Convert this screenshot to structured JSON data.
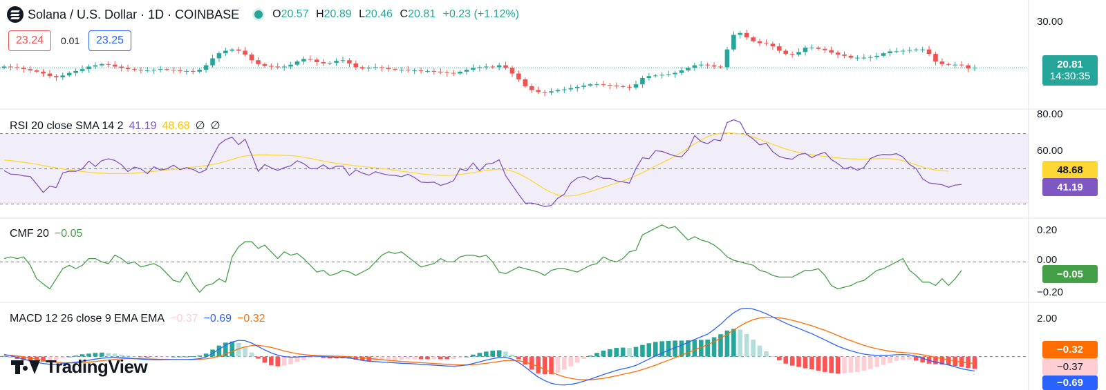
{
  "header": {
    "symbol_title": "Solana / U.S. Dollar · 1D · COINBASE",
    "o_label": "O",
    "o_value": "20.57",
    "h_label": "H",
    "h_value": "20.89",
    "l_label": "L",
    "l_value": "20.46",
    "c_label": "C",
    "c_value": "20.81",
    "change": "+0.23 (+1.12%)",
    "sell_price": "23.24",
    "spread": "0.01",
    "buy_price": "23.25"
  },
  "price_axis": {
    "ticks": [
      "30.00"
    ],
    "last_price": "20.81",
    "countdown": "14:30:35"
  },
  "rsi": {
    "label": "RSI 20 close SMA 14 2",
    "rsi_value": "41.19",
    "sma_value": "48.68",
    "extra1": "∅",
    "extra2": "∅",
    "ticks": [
      "80.00",
      "60.00"
    ],
    "upper_band": 70,
    "lower_band": 30,
    "mid": 50
  },
  "cmf": {
    "label": "CMF 20",
    "value": "−0.05",
    "ticks": [
      "0.20",
      "0.00",
      "−0.20"
    ]
  },
  "macd": {
    "label": "MACD 12 26 close 9 EMA EMA",
    "hist_value": "−0.37",
    "macd_value": "−0.69",
    "signal_value": "−0.32",
    "ticks": [
      "2.00"
    ]
  },
  "branding": {
    "logo_text": "TradingView"
  },
  "colors": {
    "up": "#26a69a",
    "down": "#ef5350",
    "rsi": "#7e57c2",
    "rsi_sma": "#fdd835",
    "cmf": "#43a047",
    "macd": "#2962ff",
    "signal": "#ff6d00",
    "hist_up_strong": "#26a69a",
    "hist_up_weak": "#b2dfdb",
    "hist_down_strong": "#ff5252",
    "hist_down_weak": "#ffcdd2"
  },
  "chart_data": [
    {
      "type": "candlestick",
      "title": "Solana / U.S. Dollar · 1D · COINBASE",
      "ylim": [
        14.3,
        31.5
      ],
      "close": [
        21.0,
        20.9,
        20.8,
        20.6,
        20.4,
        20.2,
        19.9,
        19.5,
        19.3,
        19.6,
        20.0,
        20.3,
        20.6,
        21.0,
        21.2,
        21.4,
        21.3,
        21.0,
        20.8,
        20.6,
        20.5,
        20.4,
        20.4,
        20.5,
        20.6,
        20.5,
        20.4,
        20.3,
        20.3,
        20.2,
        20.5,
        21.2,
        22.3,
        23.1,
        23.5,
        23.7,
        23.5,
        22.9,
        22.0,
        21.4,
        21.1,
        21.0,
        20.9,
        21.0,
        21.3,
        21.8,
        22.2,
        22.1,
        21.7,
        21.5,
        21.6,
        21.9,
        22.0,
        21.5,
        20.9,
        20.7,
        20.8,
        20.9,
        20.8,
        20.6,
        20.5,
        20.5,
        20.4,
        20.4,
        20.3,
        20.3,
        20.2,
        20.1,
        20.0,
        19.9,
        20.2,
        20.5,
        20.8,
        20.9,
        21.0,
        20.9,
        21.2,
        20.8,
        19.9,
        19.0,
        17.9,
        17.3,
        17.0,
        16.9,
        17.1,
        17.3,
        17.4,
        17.6,
        17.8,
        18.0,
        18.2,
        18.2,
        18.1,
        18.0,
        17.9,
        17.8,
        17.7,
        18.2,
        19.2,
        19.5,
        19.6,
        19.7,
        19.8,
        20.0,
        20.4,
        20.8,
        21.2,
        21.3,
        21.2,
        21.0,
        20.9,
        23.7,
        26.0,
        26.3,
        25.6,
        25.0,
        24.7,
        24.6,
        24.2,
        23.5,
        23.0,
        22.9,
        23.3,
        24.0,
        24.0,
        23.8,
        23.6,
        23.2,
        22.9,
        22.7,
        22.4,
        22.4,
        22.4,
        22.5,
        22.7,
        23.1,
        23.4,
        23.4,
        23.5,
        23.6,
        23.7,
        23.7,
        23.0,
        21.8,
        21.4,
        21.3,
        21.3,
        21.2,
        20.7,
        20.81
      ],
      "last_price": 20.81
    },
    {
      "type": "line",
      "name": "RSI 20",
      "ylim": [
        22,
        84
      ],
      "bands": [
        70,
        50,
        30
      ],
      "series": [
        {
          "name": "RSI",
          "values": [
            49.0,
            47.0,
            46.8,
            46.0,
            45.7,
            41.3,
            36.6,
            40.2,
            39.4,
            47.7,
            48.7,
            48.6,
            50.0,
            54.4,
            51.4,
            54.7,
            55.7,
            54.8,
            52.4,
            48.5,
            51.0,
            50.0,
            47.3,
            51.2,
            49.4,
            50.0,
            52.1,
            49.6,
            50.7,
            49.7,
            47.8,
            49.5,
            57.0,
            63.9,
            66.7,
            68.0,
            63.8,
            66.8,
            58.0,
            48.6,
            52.4,
            50.6,
            49.1,
            50.7,
            51.7,
            54.6,
            53.0,
            50.1,
            50.1,
            52.3,
            49.9,
            51.5,
            51.6,
            46.3,
            49.4,
            47.6,
            46.4,
            48.4,
            47.3,
            46.5,
            46.3,
            45.6,
            46.9,
            45.1,
            42.5,
            42.2,
            42.5,
            40.6,
            41.7,
            43.3,
            50.0,
            48.9,
            53.4,
            48.9,
            52.7,
            53.2,
            55.2,
            46.1,
            40.7,
            35.5,
            30.5,
            30.6,
            29.7,
            28.6,
            29.2,
            33.3,
            35.6,
            42.0,
            44.8,
            45.7,
            43.9,
            46.0,
            44.6,
            44.6,
            43.2,
            42.6,
            41.9,
            50.2,
            56.3,
            55.8,
            60.3,
            59.9,
            58.6,
            57.3,
            56.8,
            60.9,
            68.9,
            65.5,
            64.3,
            66.7,
            65.9,
            76.3,
            77.9,
            76.5,
            69.6,
            67.0,
            63.6,
            64.6,
            59.7,
            57.1,
            56.0,
            55.5,
            58.1,
            58.8,
            56.4,
            58.2,
            59.4,
            55.3,
            53.0,
            50.0,
            51.1,
            49.2,
            50.8,
            55.9,
            57.5,
            58.2,
            58.0,
            58.6,
            56.8,
            52.5,
            50.2,
            44.4,
            42.0,
            41.5,
            41.0,
            39.5,
            40.8,
            41.19
          ]
        },
        {
          "name": "SMA",
          "values": [
            55.0,
            54.7,
            54.3,
            53.8,
            53.2,
            52.6,
            51.9,
            51.2,
            50.6,
            50.0,
            49.4,
            48.9,
            48.5,
            48.1,
            47.8,
            47.6,
            47.4,
            47.3,
            47.3,
            47.4,
            47.6,
            47.9,
            48.2,
            48.6,
            49.0,
            49.4,
            49.8,
            50.2,
            50.6,
            51.0,
            51.4,
            51.9,
            52.5,
            53.3,
            54.3,
            55.4,
            56.5,
            57.3,
            57.8,
            58.0,
            58.0,
            57.9,
            57.8,
            57.7,
            57.5,
            57.2,
            56.7,
            56.0,
            55.2,
            54.4,
            53.7,
            53.1,
            52.6,
            52.2,
            51.8,
            51.4,
            51.0,
            50.6,
            50.2,
            49.7,
            49.2,
            48.7,
            48.2,
            47.7,
            47.2,
            46.8,
            46.5,
            46.3,
            46.3,
            46.5,
            46.8,
            47.3,
            47.9,
            48.5,
            49.1,
            49.5,
            49.7,
            49.5,
            48.7,
            47.3,
            45.4,
            43.2,
            40.8,
            38.5,
            36.6,
            35.2,
            34.6,
            34.6,
            35.1,
            36.0,
            37.1,
            38.3,
            39.5,
            40.7,
            41.9,
            43.2,
            44.6,
            46.1,
            47.8,
            49.7,
            51.6,
            53.4,
            55.3,
            57.3,
            59.4,
            61.8,
            64.2,
            66.4,
            68.3,
            69.6,
            70.2,
            70.4,
            70.3,
            69.9,
            69.2,
            68.1,
            66.7,
            65.3,
            63.9,
            62.6,
            61.3,
            60.2,
            59.3,
            58.6,
            58.0,
            57.5,
            57.0,
            56.6,
            56.2,
            55.9,
            55.7,
            55.6,
            55.6,
            55.7,
            55.8,
            55.9,
            55.8,
            55.4,
            54.7,
            53.6,
            52.3,
            51.1,
            50.1,
            49.3,
            48.9,
            48.68
          ]
        }
      ]
    },
    {
      "type": "line",
      "name": "CMF 20",
      "ylim": [
        -0.24,
        0.26
      ],
      "series": [
        {
          "name": "CMF",
          "values": [
            0.02,
            0.03,
            0.02,
            0.03,
            -0.02,
            -0.1,
            -0.13,
            -0.16,
            -0.1,
            -0.04,
            -0.02,
            -0.04,
            -0.02,
            0.02,
            0.02,
            0.0,
            -0.01,
            0.04,
            0.02,
            -0.01,
            0.0,
            -0.03,
            -0.02,
            -0.01,
            -0.03,
            -0.07,
            -0.11,
            -0.12,
            -0.06,
            -0.13,
            -0.18,
            -0.14,
            -0.13,
            -0.1,
            -0.12,
            0.03,
            0.09,
            0.12,
            0.12,
            0.08,
            0.1,
            0.06,
            0.02,
            0.06,
            0.04,
            0.05,
            0.02,
            -0.02,
            -0.06,
            -0.05,
            -0.08,
            -0.07,
            -0.05,
            -0.06,
            -0.08,
            -0.06,
            -0.04,
            0.0,
            0.04,
            0.06,
            0.05,
            0.06,
            0.03,
            0.0,
            -0.03,
            -0.02,
            -0.01,
            0.02,
            0.0,
            0.0,
            0.03,
            0.04,
            0.04,
            0.03,
            0.04,
            0.0,
            -0.06,
            -0.07,
            -0.05,
            -0.03,
            -0.04,
            -0.05,
            -0.06,
            -0.08,
            -0.05,
            -0.04,
            -0.04,
            -0.05,
            -0.06,
            -0.04,
            -0.02,
            -0.01,
            0.03,
            0.01,
            0.0,
            0.02,
            0.06,
            0.07,
            0.16,
            0.18,
            0.2,
            0.22,
            0.2,
            0.21,
            0.17,
            0.13,
            0.15,
            0.13,
            0.12,
            0.1,
            0.07,
            0.03,
            0.01,
            0.0,
            -0.01,
            -0.02,
            -0.05,
            -0.06,
            -0.08,
            -0.09,
            -0.09,
            -0.09,
            -0.07,
            -0.05,
            -0.05,
            -0.04,
            -0.08,
            -0.14,
            -0.16,
            -0.15,
            -0.14,
            -0.12,
            -0.11,
            -0.08,
            -0.05,
            -0.04,
            -0.02,
            0.0,
            0.02,
            -0.05,
            -0.08,
            -0.12,
            -0.12,
            -0.14,
            -0.1,
            -0.14,
            -0.1,
            -0.05
          ]
        }
      ]
    },
    {
      "type": "line+histogram",
      "name": "MACD 12 26 close 9 EMA EMA",
      "ylim": [
        -1.6,
        2.6
      ],
      "series": [
        {
          "name": "MACD",
          "values": [
            0.1,
            0.05,
            -0.04,
            -0.12,
            -0.2,
            -0.27,
            -0.33,
            -0.37,
            -0.37,
            -0.34,
            -0.3,
            -0.27,
            -0.22,
            -0.17,
            -0.12,
            -0.08,
            -0.05,
            -0.04,
            -0.05,
            -0.07,
            -0.1,
            -0.12,
            -0.14,
            -0.15,
            -0.15,
            -0.14,
            -0.14,
            -0.14,
            -0.14,
            -0.13,
            -0.1,
            -0.02,
            0.15,
            0.35,
            0.55,
            0.7,
            0.78,
            0.76,
            0.65,
            0.48,
            0.32,
            0.18,
            0.07,
            0.0,
            -0.03,
            -0.02,
            0.0,
            0.02,
            0.02,
            0.0,
            -0.02,
            -0.03,
            -0.04,
            -0.07,
            -0.12,
            -0.18,
            -0.22,
            -0.24,
            -0.26,
            -0.28,
            -0.3,
            -0.32,
            -0.33,
            -0.35,
            -0.37,
            -0.39,
            -0.41,
            -0.43,
            -0.45,
            -0.46,
            -0.44,
            -0.4,
            -0.33,
            -0.25,
            -0.17,
            -0.1,
            -0.04,
            -0.04,
            -0.12,
            -0.28,
            -0.5,
            -0.75,
            -0.98,
            -1.15,
            -1.28,
            -1.35,
            -1.36,
            -1.33,
            -1.27,
            -1.18,
            -1.08,
            -0.97,
            -0.86,
            -0.76,
            -0.66,
            -0.58,
            -0.52,
            -0.42,
            -0.27,
            -0.12,
            0.03,
            0.17,
            0.3,
            0.43,
            0.55,
            0.68,
            0.82,
            0.95,
            1.08,
            1.3,
            1.55,
            1.85,
            2.1,
            2.28,
            2.32,
            2.28,
            2.18,
            2.05,
            1.9,
            1.75,
            1.6,
            1.47,
            1.35,
            1.22,
            1.1,
            0.95,
            0.8,
            0.65,
            0.5,
            0.38,
            0.28,
            0.19,
            0.12,
            0.08,
            0.06,
            0.06,
            0.07,
            0.09,
            0.1,
            0.08,
            0.02,
            -0.08,
            -0.18,
            -0.26,
            -0.33,
            -0.4,
            -0.49,
            -0.58,
            -0.64,
            -0.69
          ]
        },
        {
          "name": "Signal",
          "values": [
            0.08,
            0.06,
            0.03,
            -0.01,
            -0.06,
            -0.12,
            -0.18,
            -0.23,
            -0.27,
            -0.29,
            -0.3,
            -0.3,
            -0.29,
            -0.26,
            -0.23,
            -0.2,
            -0.16,
            -0.13,
            -0.11,
            -0.1,
            -0.1,
            -0.1,
            -0.11,
            -0.12,
            -0.13,
            -0.13,
            -0.14,
            -0.14,
            -0.14,
            -0.14,
            -0.13,
            -0.11,
            -0.06,
            0.02,
            0.13,
            0.25,
            0.37,
            0.47,
            0.53,
            0.54,
            0.5,
            0.44,
            0.36,
            0.27,
            0.2,
            0.14,
            0.1,
            0.07,
            0.05,
            0.04,
            0.03,
            0.02,
            0.01,
            -0.01,
            -0.03,
            -0.06,
            -0.09,
            -0.12,
            -0.15,
            -0.18,
            -0.2,
            -0.23,
            -0.25,
            -0.27,
            -0.29,
            -0.31,
            -0.33,
            -0.35,
            -0.37,
            -0.39,
            -0.4,
            -0.4,
            -0.39,
            -0.36,
            -0.32,
            -0.28,
            -0.23,
            -0.19,
            -0.18,
            -0.2,
            -0.26,
            -0.36,
            -0.48,
            -0.62,
            -0.75,
            -0.87,
            -0.97,
            -1.04,
            -1.09,
            -1.11,
            -1.11,
            -1.08,
            -1.04,
            -0.98,
            -0.92,
            -0.85,
            -0.78,
            -0.71,
            -0.62,
            -0.52,
            -0.41,
            -0.29,
            -0.17,
            -0.05,
            0.07,
            0.19,
            0.32,
            0.45,
            0.57,
            0.72,
            0.88,
            1.07,
            1.27,
            1.47,
            1.64,
            1.77,
            1.85,
            1.89,
            1.89,
            1.86,
            1.81,
            1.74,
            1.66,
            1.57,
            1.48,
            1.37,
            1.26,
            1.14,
            1.01,
            0.88,
            0.76,
            0.65,
            0.54,
            0.45,
            0.37,
            0.31,
            0.26,
            0.22,
            0.2,
            0.17,
            0.14,
            0.09,
            0.03,
            -0.03,
            -0.09,
            -0.15,
            -0.21,
            -0.27,
            -0.3,
            -0.32
          ]
        }
      ],
      "histogram_last": -0.37
    }
  ]
}
